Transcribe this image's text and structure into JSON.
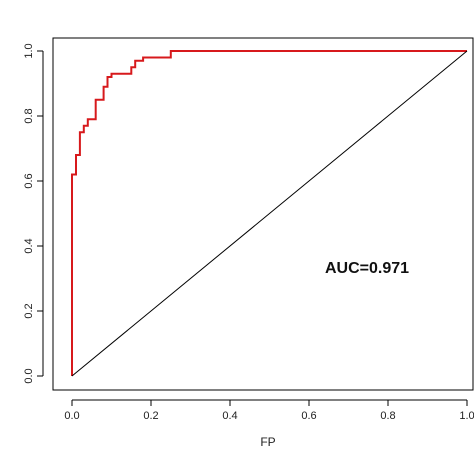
{
  "chart_data": {
    "type": "line",
    "title": "",
    "xlabel": "FP",
    "ylabel": "",
    "xlim": [
      0,
      1
    ],
    "ylim": [
      0,
      1
    ],
    "x_ticks": [
      0.0,
      0.2,
      0.4,
      0.6,
      0.8,
      1.0
    ],
    "y_ticks": [
      0.0,
      0.2,
      0.4,
      0.6,
      0.8,
      1.0
    ],
    "x_tick_labels": [
      "0.0",
      "0.2",
      "0.4",
      "0.6",
      "0.8",
      "1.0"
    ],
    "y_tick_labels": [
      "0.0",
      "0.2",
      "0.4",
      "0.6",
      "0.8",
      "1.0"
    ],
    "grid": false,
    "annotation": "AUC=0.971",
    "series": [
      {
        "color": "#d7191c",
        "step": true,
        "x": [
          0.0,
          0.0,
          0.0,
          0.01,
          0.01,
          0.02,
          0.02,
          0.03,
          0.03,
          0.04,
          0.04,
          0.06,
          0.06,
          0.08,
          0.08,
          0.09,
          0.09,
          0.1,
          0.1,
          0.15,
          0.15,
          0.16,
          0.16,
          0.18,
          0.18,
          0.25,
          0.25,
          1.0
        ],
        "y": [
          0.0,
          0.0,
          0.62,
          0.62,
          0.68,
          0.68,
          0.75,
          0.75,
          0.77,
          0.77,
          0.79,
          0.79,
          0.85,
          0.85,
          0.89,
          0.89,
          0.92,
          0.92,
          0.93,
          0.93,
          0.95,
          0.95,
          0.97,
          0.97,
          0.98,
          0.98,
          1.0,
          1.0
        ]
      },
      {
        "color": "#000000",
        "step": false,
        "x": [
          0.0,
          1.0
        ],
        "y": [
          0.0,
          1.0
        ]
      }
    ]
  }
}
